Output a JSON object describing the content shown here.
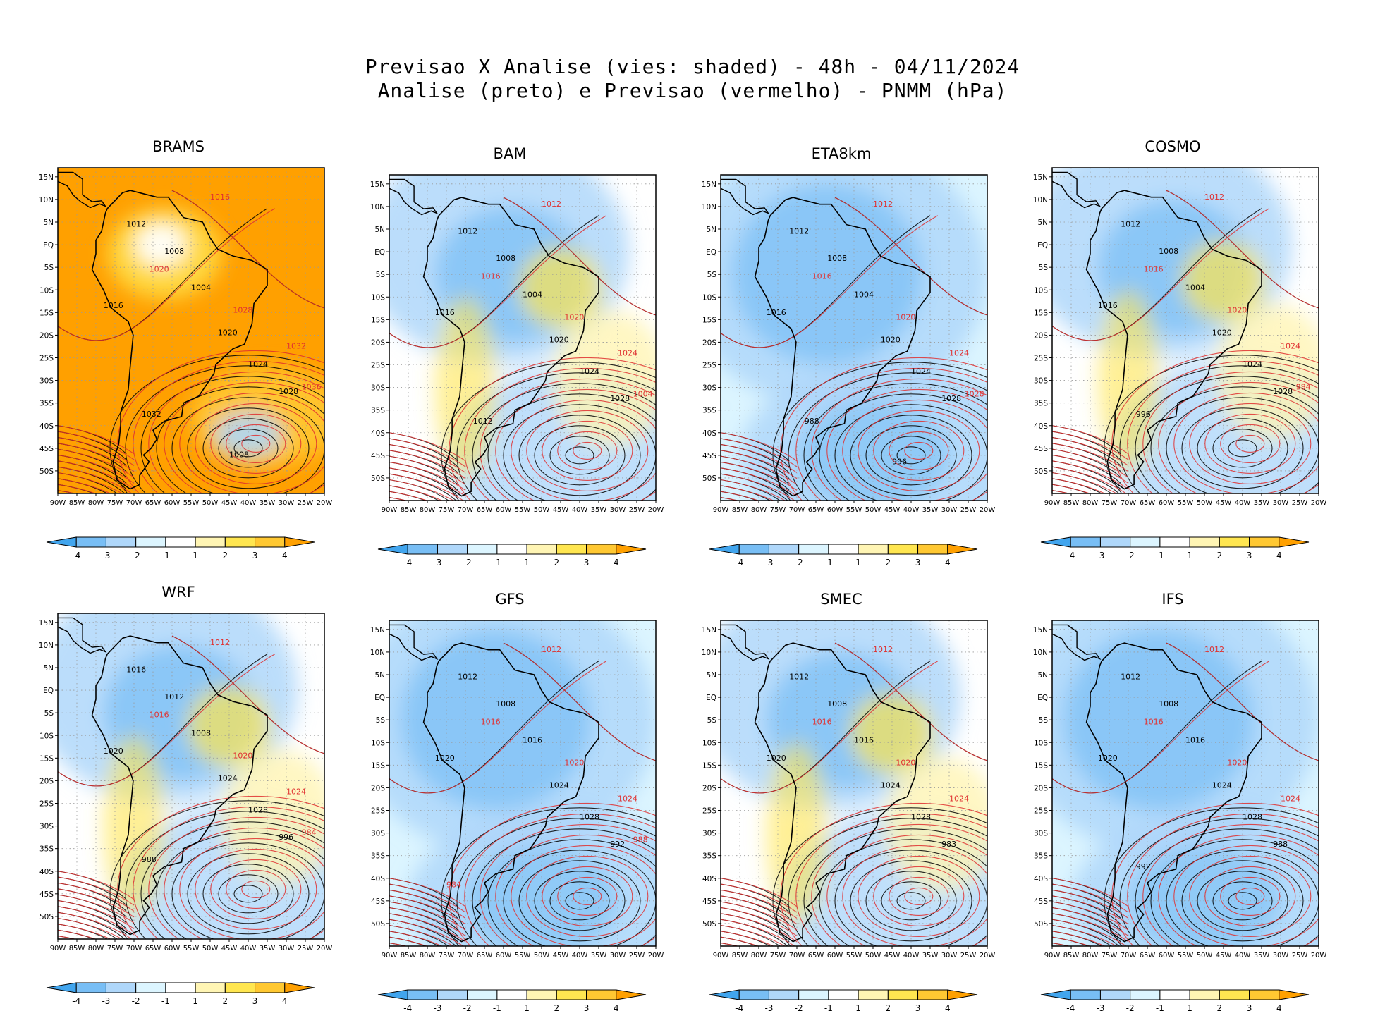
{
  "header": {
    "line1": "Previsao X Analise (vies: shaded) - 48h - 04/11/2024",
    "line2": "Analise (preto) e Previsao (vermelho) - PNMM (hPa)"
  },
  "lat_labels": [
    "15N",
    "10N",
    "5N",
    "EQ",
    "5S",
    "10S",
    "15S",
    "20S",
    "25S",
    "30S",
    "35S",
    "40S",
    "45S",
    "50S"
  ],
  "lon_labels": [
    "90W",
    "85W",
    "80W",
    "75W",
    "70W",
    "65W",
    "60W",
    "55W",
    "50W",
    "45W",
    "40W",
    "35W",
    "30W",
    "25W",
    "20W"
  ],
  "colorbar": {
    "ticks": [
      "-4",
      "-3",
      "-2",
      "-1",
      "1",
      "2",
      "3",
      "4"
    ],
    "colors": [
      "#41a5ee",
      "#78bef5",
      "#afd7fa",
      "#dcf5ff",
      "#ffffff",
      "#fff5b4",
      "#ffe650",
      "#ffc832",
      "#ffa000"
    ]
  },
  "colors": {
    "analysis": "#000000",
    "forecast": "#e03030",
    "land_outline": "#000000"
  },
  "panels": [
    {
      "name": "BRAMS",
      "bias": "warm",
      "labels_black": [
        "1012",
        "1008",
        "1004",
        "1016",
        "1020",
        "1024",
        "1028",
        "1032",
        "1008"
      ],
      "labels_red": [
        "1016",
        "1020",
        "1028",
        "1032",
        "1036"
      ]
    },
    {
      "name": "BAM",
      "bias": "mixed",
      "labels_black": [
        "1012",
        "1008",
        "1004",
        "1016",
        "1020",
        "1024",
        "1028",
        "1012"
      ],
      "labels_red": [
        "1012",
        "1016",
        "1020",
        "1024",
        "1004"
      ]
    },
    {
      "name": "ETA8km",
      "bias": "cold",
      "labels_black": [
        "1012",
        "1008",
        "1004",
        "1016",
        "1020",
        "1024",
        "1028",
        "988",
        "996"
      ],
      "labels_red": [
        "1012",
        "1016",
        "1020",
        "1024",
        "1028"
      ]
    },
    {
      "name": "COSMO",
      "bias": "mixed",
      "labels_black": [
        "1012",
        "1008",
        "1004",
        "1016",
        "1020",
        "1024",
        "1028",
        "996"
      ],
      "labels_red": [
        "1012",
        "1016",
        "1020",
        "1024",
        "984"
      ]
    },
    {
      "name": "WRF",
      "bias": "mixed",
      "labels_black": [
        "1016",
        "1012",
        "1008",
        "1020",
        "1024",
        "1028",
        "996",
        "988"
      ],
      "labels_red": [
        "1012",
        "1016",
        "1020",
        "1024",
        "984"
      ]
    },
    {
      "name": "GFS",
      "bias": "cold",
      "labels_black": [
        "1012",
        "1008",
        "1016",
        "1020",
        "1024",
        "1028",
        "992"
      ],
      "labels_red": [
        "1012",
        "1016",
        "1020",
        "1024",
        "988",
        "984"
      ]
    },
    {
      "name": "SMEC",
      "bias": "mixed",
      "labels_black": [
        "1012",
        "1008",
        "1016",
        "1020",
        "1024",
        "1028",
        "983"
      ],
      "labels_red": [
        "1012",
        "1016",
        "1020",
        "1024"
      ]
    },
    {
      "name": "IFS",
      "bias": "cold",
      "labels_black": [
        "1012",
        "1008",
        "1016",
        "1020",
        "1024",
        "1028",
        "988",
        "992"
      ],
      "labels_red": [
        "1012",
        "1016",
        "1020",
        "1024"
      ]
    }
  ]
}
